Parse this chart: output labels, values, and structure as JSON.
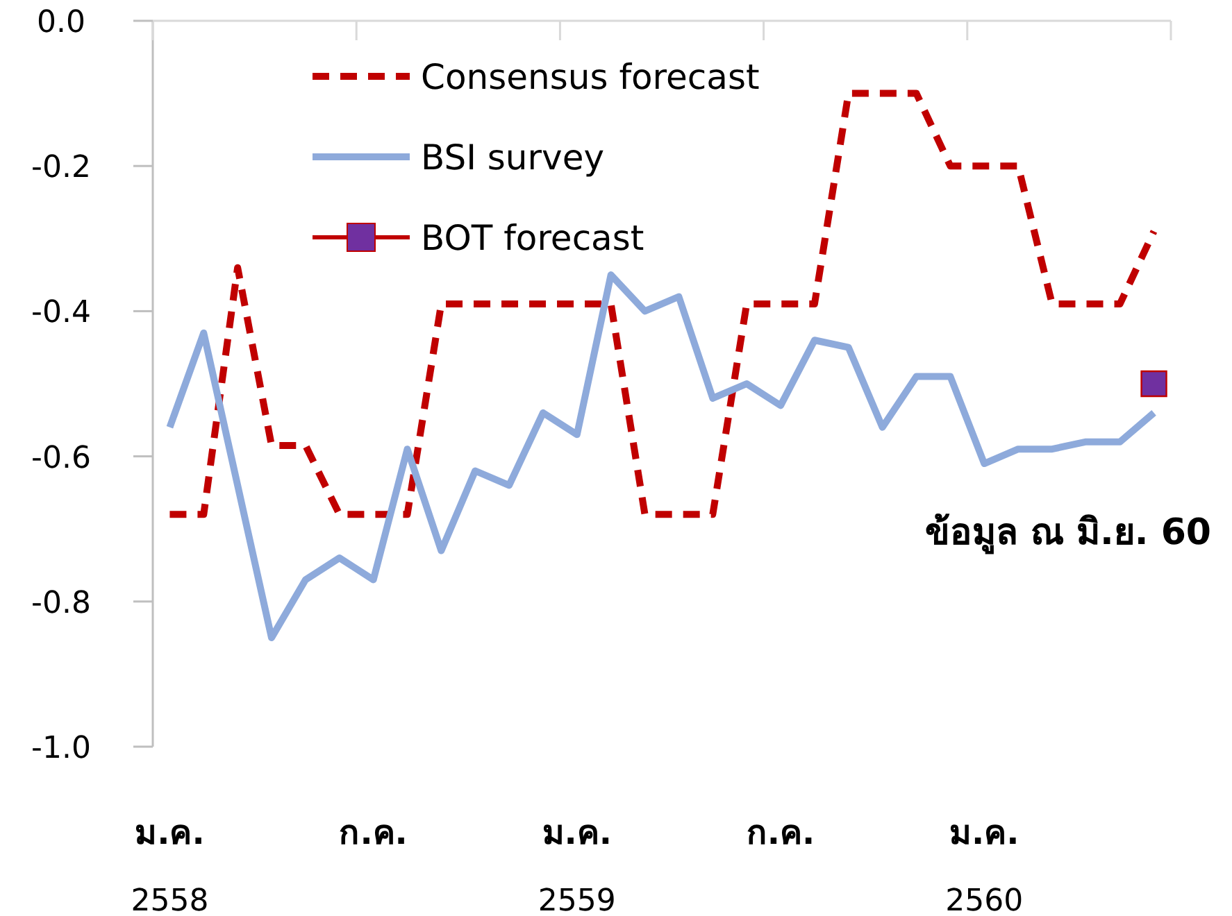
{
  "chart_data": {
    "type": "line",
    "legend": "top left",
    "categories": [
      "ม.ค. 2558",
      null,
      null,
      null,
      null,
      null,
      "ก.ค.",
      null,
      null,
      null,
      null,
      null,
      "ม.ค. 2559",
      null,
      null,
      null,
      null,
      null,
      "ก.ค.",
      null,
      null,
      null,
      null,
      null,
      "ม.ค. 2560",
      null,
      null,
      null,
      null,
      null
    ],
    "ylim": [
      -1,
      0
    ],
    "yticks": [
      {
        "value": 0,
        "label": "0.0"
      },
      {
        "value": -0.2,
        "label": "-0.2"
      },
      {
        "value": -0.4,
        "label": "-0.4"
      },
      {
        "value": -0.6,
        "label": "-0.6"
      },
      {
        "value": -0.8,
        "label": "-0.8"
      },
      {
        "value": -1,
        "label": "-1.0"
      }
    ],
    "series": [
      {
        "name": "Consensus forecast",
        "color": "#c00000",
        "line_style": "dashed",
        "values": [
          -0.68,
          -0.68,
          -0.34,
          -0.585,
          -0.585,
          -0.68,
          -0.68,
          -0.68,
          -0.39,
          -0.39,
          -0.39,
          -0.39,
          -0.39,
          -0.39,
          -0.68,
          -0.68,
          -0.68,
          -0.39,
          -0.39,
          -0.39,
          -0.1,
          -0.1,
          -0.1,
          -0.2,
          -0.2,
          -0.2,
          -0.39,
          -0.39,
          -0.39,
          -0.29
        ]
      },
      {
        "name": "BSI survey",
        "color": "#8eaadb",
        "line_style": "solid",
        "values": [
          -0.56,
          -0.43,
          -0.64,
          -0.85,
          -0.77,
          -0.74,
          -0.77,
          -0.59,
          -0.73,
          -0.62,
          -0.64,
          -0.54,
          -0.57,
          -0.35,
          -0.4,
          -0.38,
          -0.52,
          -0.5,
          -0.53,
          -0.44,
          -0.45,
          -0.56,
          -0.49,
          -0.49,
          -0.61,
          -0.59,
          -0.59,
          -0.58,
          -0.58,
          -0.54
        ]
      },
      {
        "name": "BOT forecast",
        "color": "#7030a0",
        "marker": "square",
        "values": [
          null,
          null,
          null,
          null,
          null,
          null,
          null,
          null,
          null,
          null,
          null,
          null,
          null,
          null,
          null,
          null,
          null,
          null,
          null,
          null,
          null,
          null,
          null,
          null,
          null,
          null,
          null,
          null,
          null,
          -0.5
        ]
      }
    ],
    "annotations": [
      "ข้อมูล ณ มิ.ย. 60"
    ]
  }
}
